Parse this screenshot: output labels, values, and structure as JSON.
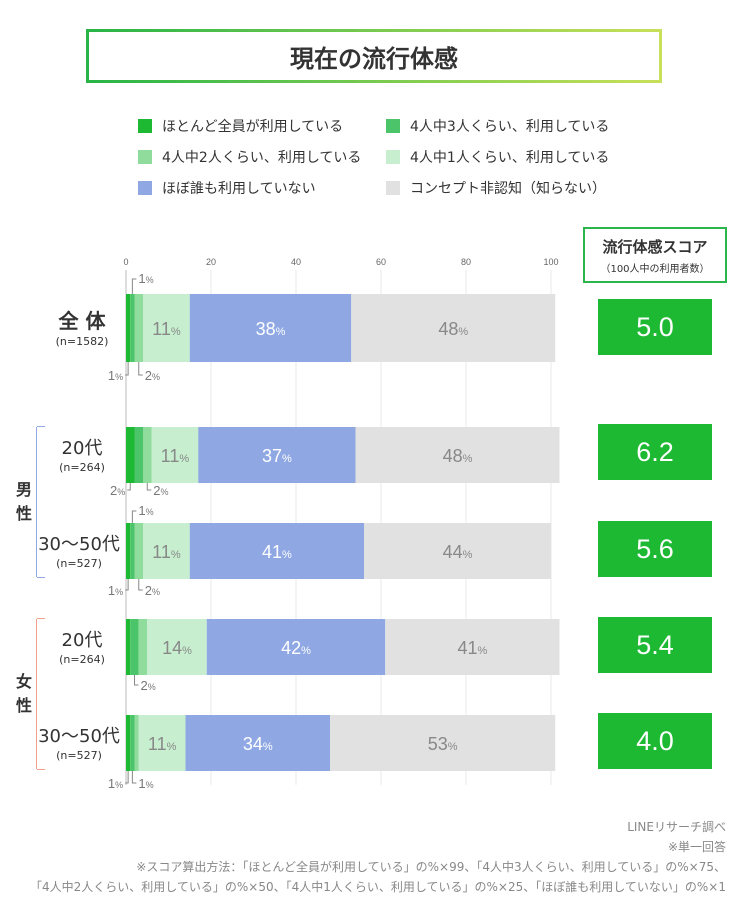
{
  "title": "現在の流行体感",
  "legend": [
    {
      "label": "ほとんど全員が利用している",
      "color": "#1db933"
    },
    {
      "label": "4人中3人くらい、利用している",
      "color": "#4cc56a"
    },
    {
      "label": "4人中2人くらい、利用している",
      "color": "#8fdc9d"
    },
    {
      "label": "4人中1人くらい、利用している",
      "color": "#c7efcf"
    },
    {
      "label": "ほぼ誰も利用していない",
      "color": "#8fa8e3"
    },
    {
      "label": "コンセプト非認知（知らない）",
      "color": "#e1e1e1"
    }
  ],
  "score_header": {
    "title": "流行体感スコア",
    "subtitle": "（100人中の利用者数）"
  },
  "groups": {
    "male": "男性",
    "female": "女性"
  },
  "rows": [
    {
      "label": "全 体",
      "n": "(n=1582)",
      "score": "5.0"
    },
    {
      "label": "20代",
      "n": "(n=264)",
      "score": "6.2"
    },
    {
      "label": "30〜50代",
      "n": "(n=527)",
      "score": "5.6"
    },
    {
      "label": "20代",
      "n": "(n=264)",
      "score": "5.4"
    },
    {
      "label": "30〜50代",
      "n": "(n=527)",
      "score": "4.0"
    }
  ],
  "chart_data": {
    "type": "bar",
    "orientation": "horizontal-stacked",
    "categories": [
      "全 体",
      "男性 20代",
      "男性 30〜50代",
      "女性 20代",
      "女性 30〜50代"
    ],
    "series": [
      {
        "name": "ほとんど全員が利用している",
        "values": [
          1,
          2,
          1,
          1,
          1
        ]
      },
      {
        "name": "4人中3人くらい、利用している",
        "values": [
          1,
          2,
          1,
          2,
          1
        ]
      },
      {
        "name": "4人中2人くらい、利用している",
        "values": [
          2,
          2,
          2,
          2,
          1
        ]
      },
      {
        "name": "4人中1人くらい、利用している",
        "values": [
          11,
          11,
          11,
          14,
          11
        ]
      },
      {
        "name": "ほぼ誰も利用していない",
        "values": [
          38,
          37,
          41,
          42,
          34
        ]
      },
      {
        "name": "コンセプト非認知（知らない）",
        "values": [
          48,
          48,
          44,
          41,
          53
        ]
      }
    ],
    "xlim": [
      0,
      100
    ],
    "xticks": [
      "0",
      "20",
      "40",
      "60",
      "80",
      "100"
    ],
    "percent_suffix": "%"
  },
  "footer": {
    "source": "LINEリサーチ調べ",
    "note1": "※単一回答",
    "note2": "※スコア算出方法：「ほとんど全員が利用している」の%×99、「4人中3人くらい、利用している」の%×75、",
    "note3": "「4人中2人くらい、利用している」の%×50、「4人中1人くらい、利用している」の%×25、「ほぼ誰も利用していない」の%×1"
  }
}
